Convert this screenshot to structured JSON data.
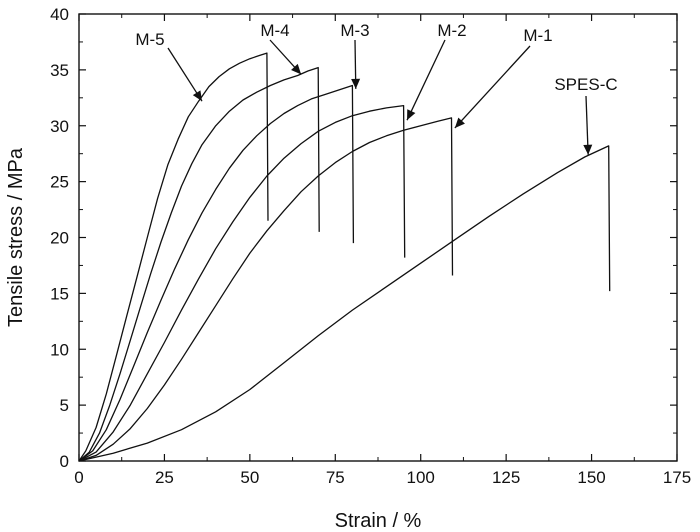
{
  "chart_data": {
    "type": "line",
    "title": "",
    "xlabel": "Strain / %",
    "ylabel": "Tensile stress / MPa",
    "xlim": [
      0,
      175
    ],
    "ylim": [
      0,
      40
    ],
    "xticks": [
      0,
      25,
      50,
      75,
      100,
      125,
      150,
      175
    ],
    "yticks": [
      0,
      5,
      10,
      15,
      20,
      25,
      30,
      35,
      40
    ],
    "grid": false,
    "legend": "none",
    "series": [
      {
        "name": "M-5",
        "points": [
          [
            0,
            0
          ],
          [
            2,
            0.9
          ],
          [
            5,
            3
          ],
          [
            8,
            6
          ],
          [
            11,
            9.5
          ],
          [
            14,
            13
          ],
          [
            17,
            16.5
          ],
          [
            20,
            20
          ],
          [
            23,
            23.5
          ],
          [
            26,
            26.5
          ],
          [
            29,
            28.8
          ],
          [
            32,
            30.8
          ],
          [
            35,
            32.2
          ],
          [
            38,
            33.5
          ],
          [
            41,
            34.4
          ],
          [
            44,
            35.1
          ],
          [
            47,
            35.6
          ],
          [
            50,
            36
          ],
          [
            53,
            36.3
          ],
          [
            55,
            36.5
          ]
        ],
        "break_to": 21.5,
        "label_anchor": [
          36,
          32.2
        ]
      },
      {
        "name": "M-4",
        "points": [
          [
            0,
            0
          ],
          [
            3,
            0.8
          ],
          [
            6,
            2.5
          ],
          [
            9,
            5
          ],
          [
            12,
            7.8
          ],
          [
            15,
            10.8
          ],
          [
            18,
            13.8
          ],
          [
            21,
            16.8
          ],
          [
            24,
            19.6
          ],
          [
            27,
            22.2
          ],
          [
            30,
            24.6
          ],
          [
            33,
            26.6
          ],
          [
            36,
            28.3
          ],
          [
            40,
            30
          ],
          [
            44,
            31.3
          ],
          [
            48,
            32.3
          ],
          [
            52,
            33
          ],
          [
            56,
            33.6
          ],
          [
            60,
            34.1
          ],
          [
            64,
            34.5
          ],
          [
            67,
            34.9
          ],
          [
            70,
            35.2
          ]
        ],
        "break_to": 20.5,
        "label_anchor": [
          65,
          34.6
        ]
      },
      {
        "name": "M-3",
        "points": [
          [
            0,
            0
          ],
          [
            4,
            0.9
          ],
          [
            8,
            2.8
          ],
          [
            12,
            5.5
          ],
          [
            16,
            8.5
          ],
          [
            20,
            11.5
          ],
          [
            24,
            14.4
          ],
          [
            28,
            17.2
          ],
          [
            32,
            19.8
          ],
          [
            36,
            22.2
          ],
          [
            40,
            24.3
          ],
          [
            44,
            26.2
          ],
          [
            48,
            27.8
          ],
          [
            52,
            29.1
          ],
          [
            56,
            30.2
          ],
          [
            60,
            31.1
          ],
          [
            64,
            31.8
          ],
          [
            68,
            32.4
          ],
          [
            72,
            32.8
          ],
          [
            76,
            33.2
          ],
          [
            80,
            33.6
          ]
        ],
        "break_to": 19.5,
        "label_anchor": [
          81,
          33.3
        ]
      },
      {
        "name": "M-2",
        "points": [
          [
            0,
            0
          ],
          [
            5,
            0.8
          ],
          [
            10,
            2.6
          ],
          [
            15,
            5
          ],
          [
            20,
            7.8
          ],
          [
            25,
            10.6
          ],
          [
            30,
            13.5
          ],
          [
            35,
            16.3
          ],
          [
            40,
            19
          ],
          [
            45,
            21.4
          ],
          [
            50,
            23.6
          ],
          [
            55,
            25.5
          ],
          [
            60,
            27.1
          ],
          [
            65,
            28.4
          ],
          [
            70,
            29.5
          ],
          [
            75,
            30.3
          ],
          [
            80,
            30.9
          ],
          [
            85,
            31.3
          ],
          [
            90,
            31.6
          ],
          [
            95,
            31.8
          ]
        ],
        "break_to": 18.2,
        "label_anchor": [
          96,
          30.5
        ]
      },
      {
        "name": "M-1",
        "points": [
          [
            0,
            0
          ],
          [
            5,
            0.5
          ],
          [
            10,
            1.5
          ],
          [
            15,
            2.9
          ],
          [
            20,
            4.7
          ],
          [
            25,
            6.8
          ],
          [
            30,
            9.1
          ],
          [
            35,
            11.5
          ],
          [
            40,
            13.9
          ],
          [
            45,
            16.3
          ],
          [
            50,
            18.6
          ],
          [
            55,
            20.6
          ],
          [
            60,
            22.4
          ],
          [
            65,
            24.1
          ],
          [
            70,
            25.5
          ],
          [
            75,
            26.7
          ],
          [
            80,
            27.7
          ],
          [
            85,
            28.5
          ],
          [
            90,
            29.1
          ],
          [
            95,
            29.6
          ],
          [
            100,
            30
          ],
          [
            105,
            30.4
          ],
          [
            109,
            30.7
          ]
        ],
        "break_to": 16.6,
        "label_anchor": [
          110,
          29.8
        ]
      },
      {
        "name": "SPES-C",
        "points": [
          [
            0,
            0
          ],
          [
            10,
            0.7
          ],
          [
            20,
            1.6
          ],
          [
            30,
            2.8
          ],
          [
            40,
            4.4
          ],
          [
            50,
            6.4
          ],
          [
            60,
            8.8
          ],
          [
            70,
            11.2
          ],
          [
            80,
            13.5
          ],
          [
            90,
            15.6
          ],
          [
            100,
            17.7
          ],
          [
            110,
            19.8
          ],
          [
            120,
            21.9
          ],
          [
            130,
            23.9
          ],
          [
            140,
            25.8
          ],
          [
            148,
            27.2
          ],
          [
            155,
            28.2
          ]
        ],
        "break_to": 15.2,
        "label_anchor": [
          149,
          27.4
        ]
      }
    ],
    "annotations": [
      {
        "series": "M-5",
        "text": "M-5"
      },
      {
        "series": "M-4",
        "text": "M-4"
      },
      {
        "series": "M-3",
        "text": "M-3"
      },
      {
        "series": "M-2",
        "text": "M-2"
      },
      {
        "series": "M-1",
        "text": "M-1"
      },
      {
        "series": "SPES-C",
        "text": "SPES-C"
      }
    ]
  }
}
